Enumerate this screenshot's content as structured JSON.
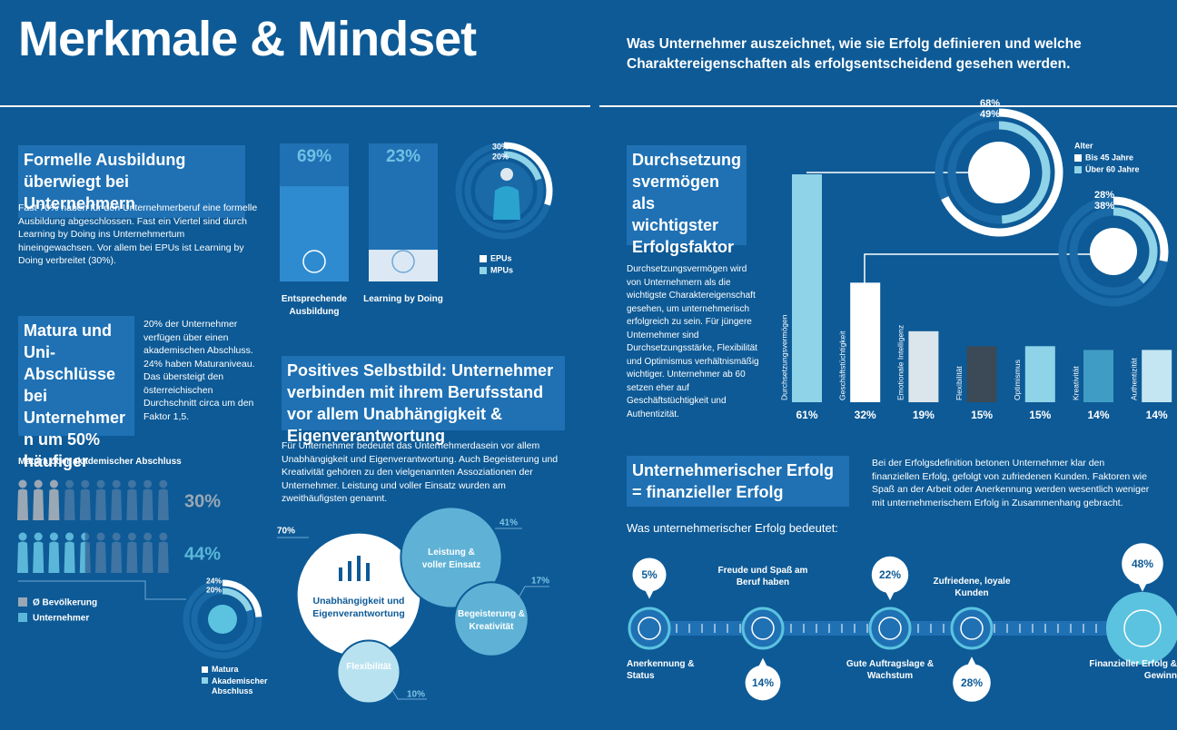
{
  "header": {
    "title": "Merkmale & Mindset",
    "subtitle": "Was Unternehmer auszeichnet, wie sie Erfolg definieren und welche Charaktereigenschaften als erfolgsentscheidend gesehen werden."
  },
  "ausbildung": {
    "heading": "Formelle Ausbildung überwiegt bei Unternehmern",
    "text": "Fast 70% haben für den Unternehmerberuf eine formelle Ausbildung abgeschlossen. Fast ein Viertel sind durch Learning by Doing ins Unternehmertum hineingewachsen. Vor allem bei EPUs ist Learning by Doing verbreitet (30%).",
    "chart_data": {
      "type": "bar",
      "categories": [
        "Entsprechende Ausbildung",
        "Learning by Doing"
      ],
      "values": [
        69,
        23
      ],
      "value_labels": [
        "69%",
        "23%"
      ],
      "ylim": [
        0,
        100
      ],
      "colors": [
        "#2f8bd0",
        "#dce9f4"
      ]
    },
    "ring": {
      "series": [
        {
          "name": "EPUs",
          "color": "#ffffff",
          "values": [
            30
          ],
          "value_labels": [
            "30%"
          ]
        },
        {
          "name": "MPUs",
          "color": "#8fd3e8",
          "values": [
            20
          ],
          "value_labels": [
            "20%"
          ]
        }
      ]
    }
  },
  "matura": {
    "heading": "Matura und Uni-Abschlüsse bei Unternehmern um 50% häufiger",
    "text": "20% der Unternehmer verfügen über einen akademischen Abschluss. 24% haben Maturaniveau. Das übersteigt den österreichischen Durchschnitt circa um den Faktor 1,5.",
    "pictogram": {
      "title": "Matura oder akademischer Abschluss",
      "series": [
        {
          "name": "Ø Bevölkerung",
          "color": "#9aa7b4",
          "values": [
            30
          ],
          "value_labels": [
            "30%"
          ]
        },
        {
          "name": "Unternehmer",
          "color": "#5bb7d9",
          "values": [
            44
          ],
          "value_labels": [
            "44%"
          ]
        }
      ]
    },
    "ring": {
      "series": [
        {
          "name": "Matura",
          "color": "#ffffff",
          "values": [
            24
          ],
          "value_labels": [
            "24%"
          ]
        },
        {
          "name": "Akademischer Abschluss",
          "color": "#8fd3e8",
          "values": [
            20
          ],
          "value_labels": [
            "20%"
          ]
        }
      ]
    }
  },
  "selbstbild": {
    "heading": "Positives Selbstbild: Unternehmer verbinden mit ihrem Berufsstand vor allem Unabhängigkeit & Eigenverantwortung",
    "text": "Für Unternehmer bedeutet das Unternehmerdasein vor allem Unabhängigkeit und Eigenverantwortung. Auch Begeisterung und Kreativität gehören zu den vielgenannten Assoziationen der Unternehmer. Leistung und voller Einsatz wurden am zweithäufigsten genannt.",
    "bubbles": {
      "type": "bubble",
      "categories": [
        "Unabhängigkeit und Eigenverantwortung",
        "Leistung & voller Einsatz",
        "Begeisterung & Kreativität",
        "Flexibilität"
      ],
      "values": [
        70,
        41,
        17,
        10
      ],
      "value_labels": [
        "70%",
        "41%",
        "17%",
        "10%"
      ],
      "colors": [
        "#ffffff",
        "#5fb2d6",
        "#5fb2d6",
        "#b9e2f0"
      ]
    }
  },
  "durchsetzung": {
    "heading": "Durchsetzungsvermögen als wichtigster Erfolgsfaktor",
    "text": "Durchsetzungsvermögen wird von Unternehmern als die wichtigste Charaktereigenschaft gesehen, um unternehmerisch erfolgreich zu sein. Für jüngere Unternehmer sind Durchsetzungsstärke, Flexibilität und Optimismus verhältnismäßig wichtiger. Unternehmer ab 60 setzen eher auf Geschäftstüchtigkeit und Authentizität.",
    "chart_data": {
      "type": "bar",
      "categories": [
        "Durchsetzungsvermögen",
        "Geschäftstüchtigkeit",
        "Emotionale Intelligenz",
        "Flexibilität",
        "Optimismus",
        "Kreativität",
        "Authentizität"
      ],
      "values": [
        61,
        32,
        19,
        15,
        15,
        14,
        14
      ],
      "value_labels": [
        "61%",
        "32%",
        "19%",
        "15%",
        "15%",
        "14%",
        "14%"
      ],
      "colors": [
        "#8fd3e8",
        "#ffffff",
        "#dbe5ec",
        "#3b4a56",
        "#8fd3e8",
        "#3f9cc4",
        "#c4e6f2"
      ]
    },
    "rings": {
      "legend_title": "Alter",
      "series": [
        {
          "name": "Bis 45 Jahre",
          "color": "#ffffff",
          "values": [
            68,
            28
          ],
          "value_labels": [
            "68%",
            "28%"
          ]
        },
        {
          "name": "Über 60 Jahre",
          "color": "#8fd3e8",
          "values": [
            49,
            38
          ],
          "value_labels": [
            "49%",
            "38%"
          ]
        }
      ]
    }
  },
  "erfolg": {
    "heading": "Unternehmerischer Erfolg = finanzieller Erfolg",
    "text": "Bei der Erfolgsdefinition betonen Unternehmer klar den finanziellen Erfolg, gefolgt von zufriedenen Kunden. Faktoren wie Spaß an der Arbeit oder Anerkennung werden wesentlich weniger mit unternehmerischem Erfolg in Zusammenhang gebracht.",
    "subheading": "Was unternehmerischer Erfolg bedeutet:",
    "items": {
      "categories": [
        "Anerkennung & Status",
        "Freude und Spaß am Beruf haben",
        "Gute Auftragslage & Wachstum",
        "Zufriedene, loyale Kunden",
        "Finanzieller Erfolg & Gewinn"
      ],
      "values": [
        5,
        14,
        22,
        28,
        48
      ],
      "value_labels": [
        "5%",
        "14%",
        "22%",
        "28%",
        "48%"
      ]
    }
  }
}
